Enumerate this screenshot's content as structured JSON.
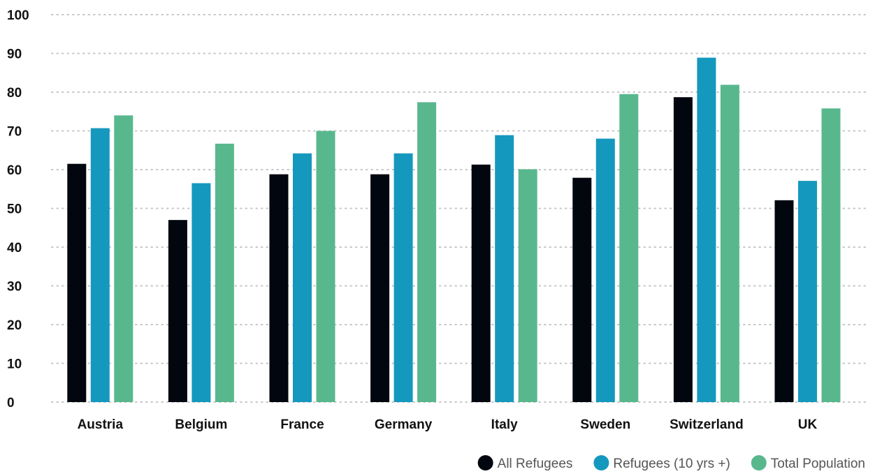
{
  "chart_data": {
    "type": "bar",
    "title": "",
    "xlabel": "",
    "ylabel": "",
    "ylim": [
      0,
      100
    ],
    "yticks": [
      0,
      10,
      20,
      30,
      40,
      50,
      60,
      70,
      80,
      90,
      100
    ],
    "grid": true,
    "legend_position": "bottom-right",
    "categories": [
      "Austria",
      "Belgium",
      "France",
      "Germany",
      "Italy",
      "Sweden",
      "Switzerland",
      "UK"
    ],
    "series": [
      {
        "name": "All Refugees",
        "color": "#02060e",
        "values": [
          61.5,
          47,
          58.8,
          58.8,
          61.3,
          57.9,
          78.7,
          52.1
        ]
      },
      {
        "name": "Refugees (10 yrs +)",
        "color": "#1598bd",
        "values": [
          70.7,
          56.5,
          64.2,
          64.2,
          68.9,
          68,
          88.9,
          57.1
        ]
      },
      {
        "name": "Total Population",
        "color": "#59b78e",
        "values": [
          74,
          66.7,
          70,
          77.4,
          60.1,
          79.5,
          81.9,
          75.8
        ]
      }
    ]
  }
}
